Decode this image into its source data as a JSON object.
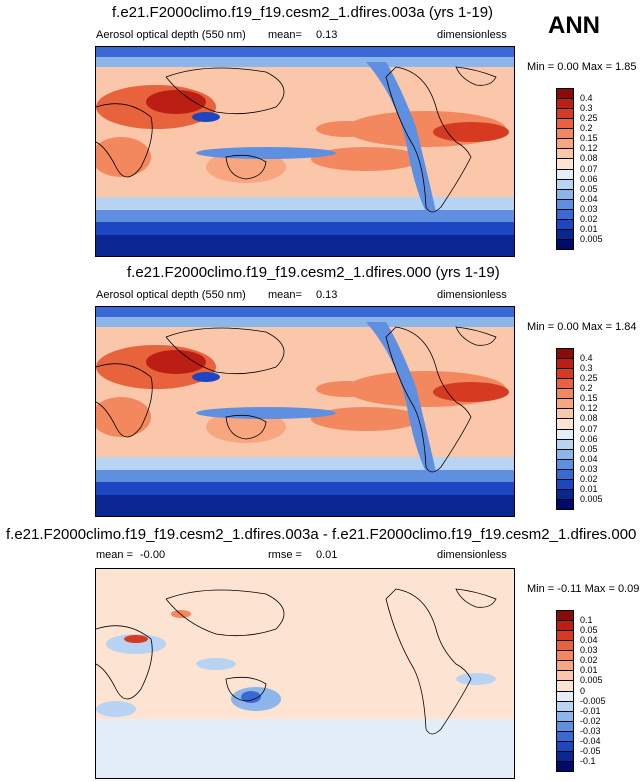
{
  "season": "ANN",
  "panels": [
    {
      "title": "f.e21.F2000climo.f19_f19.cesm2_1.dfires.003a (yrs 1-19)",
      "variable": "Aerosol optical depth (550 nm)",
      "stat_label": "mean=",
      "stat_value": "0.13",
      "units": "dimensionless",
      "min_label": "Min =",
      "min_value": "0.00",
      "max_label": "Max =",
      "max_value": "1.85",
      "levels": [
        "0.4",
        "0.3",
        "0.25",
        "0.2",
        "0.15",
        "0.12",
        "0.08",
        "0.07",
        "0.06",
        "0.05",
        "0.04",
        "0.03",
        "0.02",
        "0.01",
        "0.005"
      ],
      "colors": [
        "#8b0a0a",
        "#bb1f14",
        "#d63b22",
        "#e8623c",
        "#f3875e",
        "#f8a67f",
        "#fbc7ab",
        "#fde3d2",
        "#e3eef9",
        "#b9d3f2",
        "#8cb5ea",
        "#5f8fe0",
        "#3a69d6",
        "#1e45c2",
        "#0a2690",
        "#000a6a"
      ]
    },
    {
      "title": "f.e21.F2000climo.f19_f19.cesm2_1.dfires.000 (yrs 1-19)",
      "variable": "Aerosol optical depth (550 nm)",
      "stat_label": "mean=",
      "stat_value": "0.13",
      "units": "dimensionless",
      "min_label": "Min =",
      "min_value": "0.00",
      "max_label": "Max =",
      "max_value": "1.84",
      "levels": [
        "0.4",
        "0.3",
        "0.25",
        "0.2",
        "0.15",
        "0.12",
        "0.08",
        "0.07",
        "0.06",
        "0.05",
        "0.04",
        "0.03",
        "0.02",
        "0.01",
        "0.005"
      ],
      "colors": [
        "#8b0a0a",
        "#bb1f14",
        "#d63b22",
        "#e8623c",
        "#f3875e",
        "#f8a67f",
        "#fbc7ab",
        "#fde3d2",
        "#e3eef9",
        "#b9d3f2",
        "#8cb5ea",
        "#5f8fe0",
        "#3a69d6",
        "#1e45c2",
        "#0a2690",
        "#000a6a"
      ]
    },
    {
      "title": "f.e21.F2000climo.f19_f19.cesm2_1.dfires.003a - f.e21.F2000climo.f19_f19.cesm2_1.dfires.000",
      "stat_label": "mean =",
      "stat_value": "-0.00",
      "stat2_label": "rmse =",
      "stat2_value": "0.01",
      "units": "dimensionless",
      "min_label": "Min =",
      "min_value": "-0.11",
      "max_label": "Max =",
      "max_value": "0.09",
      "levels": [
        "0.1",
        "0.05",
        "0.04",
        "0.03",
        "0.02",
        "0.01",
        "0.005",
        "0",
        "-0.005",
        "-0.01",
        "-0.02",
        "-0.03",
        "-0.04",
        "-0.05",
        "-0.1"
      ],
      "colors": [
        "#8b0a0a",
        "#bb1f14",
        "#d63b22",
        "#e8623c",
        "#f3875e",
        "#f8a67f",
        "#fbc7ab",
        "#fde3d2",
        "#e3eef9",
        "#b9d3f2",
        "#8cb5ea",
        "#5f8fe0",
        "#3a69d6",
        "#1e45c2",
        "#0a2690",
        "#000a6a"
      ]
    }
  ],
  "chart_data": [
    {
      "type": "heatmap",
      "title": "f.e21.F2000climo.f19_f19.cesm2_1.dfires.003a (yrs 1-19)",
      "variable": "Aerosol optical depth (550 nm)",
      "units": "dimensionless",
      "mean": 0.13,
      "min": 0.0,
      "max": 1.85,
      "contour_levels": [
        0.005,
        0.01,
        0.02,
        0.03,
        0.04,
        0.05,
        0.06,
        0.07,
        0.08,
        0.12,
        0.15,
        0.2,
        0.25,
        0.3,
        0.4
      ]
    },
    {
      "type": "heatmap",
      "title": "f.e21.F2000climo.f19_f19.cesm2_1.dfires.000 (yrs 1-19)",
      "variable": "Aerosol optical depth (550 nm)",
      "units": "dimensionless",
      "mean": 0.13,
      "min": 0.0,
      "max": 1.84,
      "contour_levels": [
        0.005,
        0.01,
        0.02,
        0.03,
        0.04,
        0.05,
        0.06,
        0.07,
        0.08,
        0.12,
        0.15,
        0.2,
        0.25,
        0.3,
        0.4
      ]
    },
    {
      "type": "heatmap",
      "title": "f.e21.F2000climo.f19_f19.cesm2_1.dfires.003a - f.e21.F2000climo.f19_f19.cesm2_1.dfires.000",
      "units": "dimensionless",
      "mean": -0.0,
      "rmse": 0.01,
      "min": -0.11,
      "max": 0.09,
      "contour_levels": [
        -0.1,
        -0.05,
        -0.04,
        -0.03,
        -0.02,
        -0.01,
        -0.005,
        0,
        0.005,
        0.01,
        0.02,
        0.03,
        0.04,
        0.05,
        0.1
      ]
    }
  ]
}
